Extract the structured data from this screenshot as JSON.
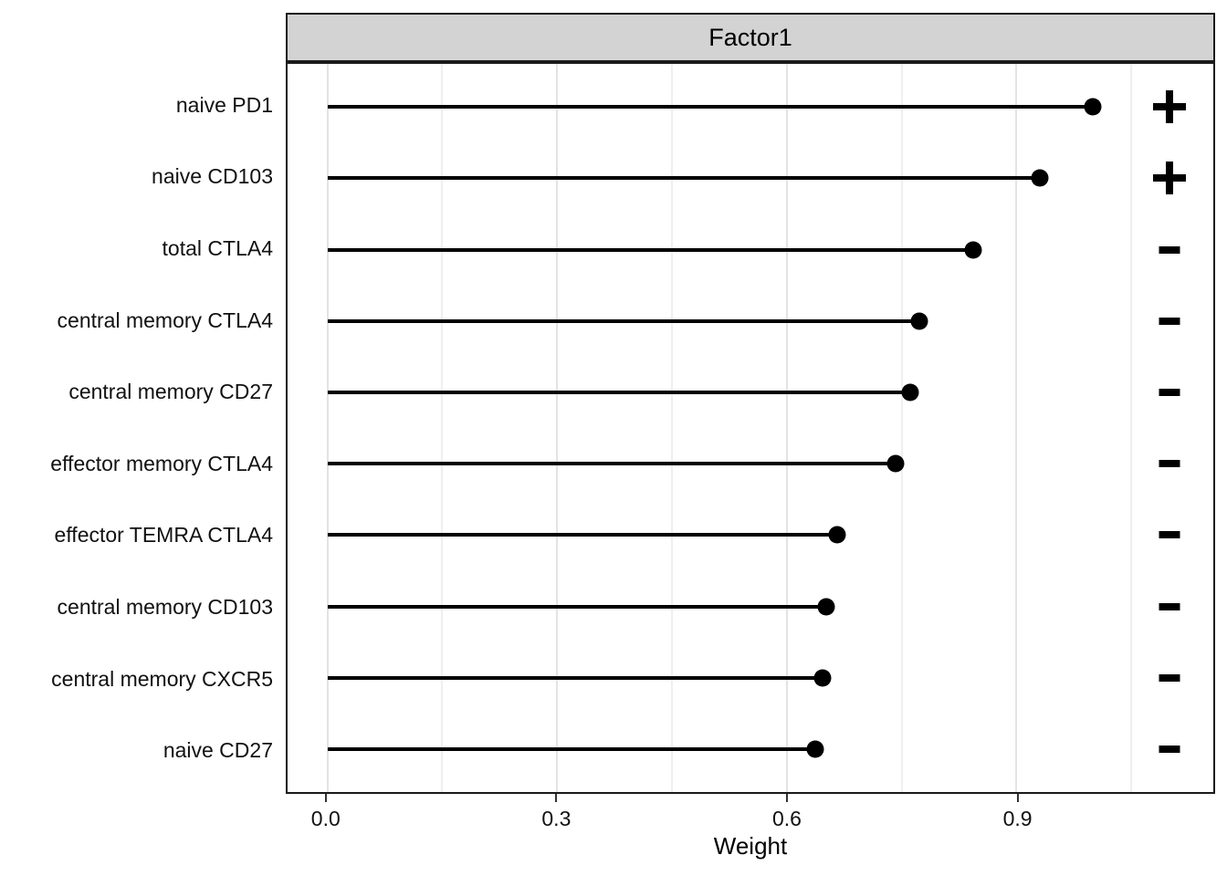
{
  "colors": {
    "strip_fill": "#D3D3D3",
    "strip_border": "#1a1a1a",
    "panel_border": "#1a1a1a",
    "grid_major": "#E3E3E3",
    "grid_minor": "#EFEFEF",
    "data_color": "#000000",
    "text_color": "#111111"
  },
  "chart_data": {
    "type": "lollipop",
    "facet_title": "Factor1",
    "xlabel": "Weight",
    "x_tick_labels": [
      "0.0",
      "0.3",
      "0.6",
      "0.9"
    ],
    "x_ticks": [
      0.0,
      0.3,
      0.6,
      0.9
    ],
    "x_minor_gridlines": [
      0.15,
      0.45,
      0.75,
      1.05
    ],
    "xlim": [
      -0.052,
      1.157
    ],
    "sign_x": 1.1,
    "categories": [
      "naive PD1",
      "naive CD103",
      "total CTLA4",
      "central memory CTLA4",
      "central memory CD27",
      "effector memory CTLA4",
      "effector TEMRA CTLA4",
      "central memory CD103",
      "central memory CXCR5",
      "naive CD27"
    ],
    "values": [
      1.0,
      0.93,
      0.844,
      0.773,
      0.761,
      0.742,
      0.666,
      0.651,
      0.647,
      0.637
    ],
    "signs": [
      "+",
      "+",
      "-",
      "-",
      "-",
      "-",
      "-",
      "-",
      "-",
      "-"
    ],
    "grid": "vertical-only",
    "legend": "none",
    "baseline": 0.0
  }
}
